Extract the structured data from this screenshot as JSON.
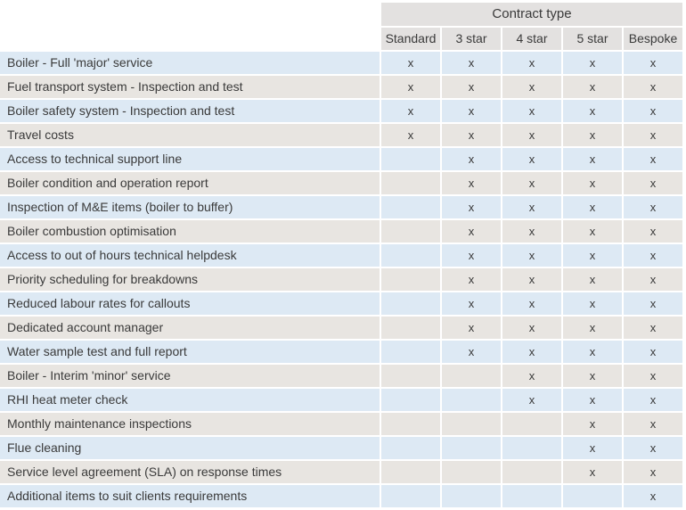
{
  "colors": {
    "header_bg": "#e3e1e0",
    "row_blue": "#dde9f4",
    "row_tan": "#e8e5e1",
    "text": "#3a3a3a",
    "separator": "#ffffff"
  },
  "chart_data": {
    "type": "table",
    "title": "Contract type",
    "columns": [
      "Standard",
      "3 star",
      "4 star",
      "5 star",
      "Bespoke"
    ],
    "mark_glyph": "x",
    "row_labels": [
      "Boiler - Full 'major' service",
      "Fuel transport system - Inspection and test",
      "Boiler safety system - Inspection and test",
      "Travel costs",
      "Access to technical support line",
      "Boiler condition and operation report",
      "Inspection of M&E items (boiler to buffer)",
      "Boiler combustion optimisation",
      "Access to out of hours technical helpdesk",
      "Priority scheduling for breakdowns",
      "Reduced labour rates for callouts",
      "Dedicated account manager",
      "Water sample test and full report",
      "Boiler - Interim 'minor' service",
      "RHI heat meter check",
      "Monthly maintenance inspections",
      "Flue cleaning",
      "Service level agreement (SLA) on response times",
      "Additional items to suit clients requirements"
    ],
    "marks": [
      [
        1,
        1,
        1,
        1,
        1
      ],
      [
        1,
        1,
        1,
        1,
        1
      ],
      [
        1,
        1,
        1,
        1,
        1
      ],
      [
        1,
        1,
        1,
        1,
        1
      ],
      [
        0,
        1,
        1,
        1,
        1
      ],
      [
        0,
        1,
        1,
        1,
        1
      ],
      [
        0,
        1,
        1,
        1,
        1
      ],
      [
        0,
        1,
        1,
        1,
        1
      ],
      [
        0,
        1,
        1,
        1,
        1
      ],
      [
        0,
        1,
        1,
        1,
        1
      ],
      [
        0,
        1,
        1,
        1,
        1
      ],
      [
        0,
        1,
        1,
        1,
        1
      ],
      [
        0,
        1,
        1,
        1,
        1
      ],
      [
        0,
        0,
        1,
        1,
        1
      ],
      [
        0,
        0,
        1,
        1,
        1
      ],
      [
        0,
        0,
        0,
        1,
        1
      ],
      [
        0,
        0,
        0,
        1,
        1
      ],
      [
        0,
        0,
        0,
        1,
        1
      ],
      [
        0,
        0,
        0,
        0,
        1
      ]
    ]
  }
}
